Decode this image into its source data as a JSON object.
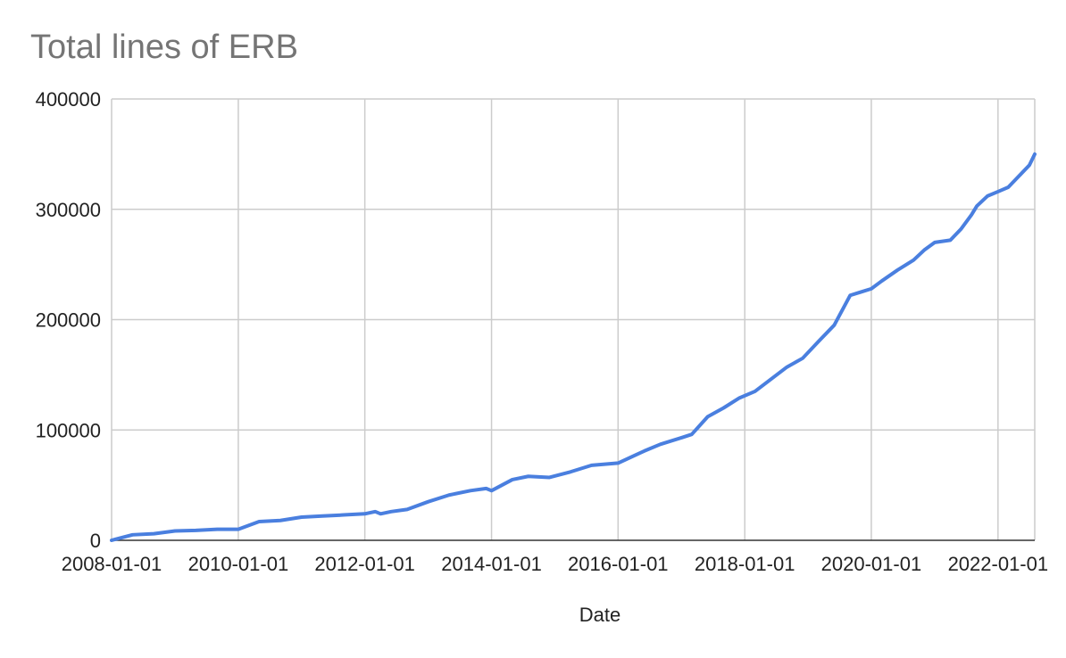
{
  "chart_data": {
    "type": "line",
    "title": "Total lines of ERB",
    "xlabel": "Date",
    "ylabel": "",
    "ylim": [
      0,
      400000
    ],
    "y_ticks": [
      "0",
      "100000",
      "200000",
      "300000",
      "400000"
    ],
    "x_range": [
      "2008-01-01",
      "2022-08-01"
    ],
    "x_ticks": [
      "2008-01-01",
      "2010-01-01",
      "2012-01-01",
      "2014-01-01",
      "2016-01-01",
      "2018-01-01",
      "2020-01-01",
      "2022-01-01"
    ],
    "grid": true,
    "legend": "none",
    "line_color": "#4a7fdf",
    "grid_color": "#cccccc",
    "series": [
      {
        "x": [
          "2008-01-01",
          "2008-05-01",
          "2008-09-01",
          "2009-01-01",
          "2009-05-01",
          "2009-09-01",
          "2010-01-01",
          "2010-05-01",
          "2010-09-01",
          "2011-01-01",
          "2011-05-01",
          "2011-09-01",
          "2012-01-01",
          "2012-03-01",
          "2012-04-01",
          "2012-06-01",
          "2012-09-01",
          "2013-01-01",
          "2013-05-01",
          "2013-09-01",
          "2013-12-01",
          "2014-01-01",
          "2014-05-01",
          "2014-08-01",
          "2014-12-01",
          "2015-04-01",
          "2015-08-01",
          "2016-01-01",
          "2016-06-01",
          "2016-09-01",
          "2017-01-01",
          "2017-03-01",
          "2017-06-01",
          "2017-09-01",
          "2017-12-01",
          "2018-03-01",
          "2018-06-01",
          "2018-09-01",
          "2018-12-01",
          "2019-03-01",
          "2019-06-01",
          "2019-09-01",
          "2019-11-01",
          "2020-01-01",
          "2020-03-01",
          "2020-06-01",
          "2020-09-01",
          "2020-11-01",
          "2021-01-01",
          "2021-04-01",
          "2021-06-01",
          "2021-08-01",
          "2021-09-01",
          "2021-11-01",
          "2022-01-01",
          "2022-03-01",
          "2022-05-01",
          "2022-07-01",
          "2022-08-01"
        ],
        "values": [
          0,
          5000,
          6000,
          8500,
          9000,
          10000,
          10000,
          17000,
          18000,
          21000,
          22000,
          23000,
          24000,
          26000,
          24000,
          26000,
          28000,
          35000,
          41000,
          45000,
          47000,
          45000,
          55000,
          58000,
          57000,
          62000,
          68000,
          70000,
          81000,
          87000,
          93000,
          96000,
          112000,
          120000,
          129000,
          135000,
          146000,
          157000,
          165000,
          180000,
          195000,
          222000,
          225000,
          228000,
          235000,
          245000,
          254000,
          263000,
          270000,
          272000,
          282000,
          295000,
          303000,
          312000,
          316000,
          320000,
          330000,
          340000,
          350000
        ]
      }
    ]
  }
}
